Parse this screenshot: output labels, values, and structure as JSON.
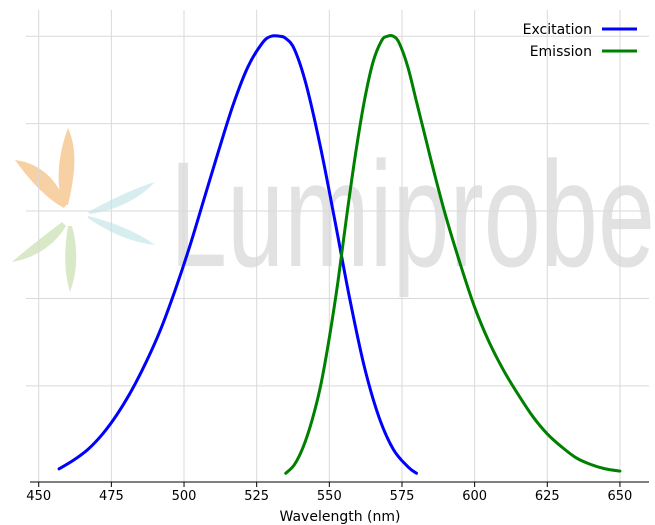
{
  "watermark": {
    "text": "Lumiprobe",
    "logo_petal_colors": [
      "#f7d1a3",
      "#d7eef0",
      "#d9e9c7"
    ]
  },
  "chart_data": {
    "type": "line",
    "title": "",
    "xlabel": "Wavelength (nm)",
    "ylabel": "",
    "xlim": [
      447,
      660
    ],
    "ylim": [
      -0.02,
      1.06
    ],
    "xticks": [
      450,
      475,
      500,
      525,
      550,
      575,
      600,
      625,
      650
    ],
    "yticks": [
      0.2,
      0.4,
      0.6,
      0.8,
      1.0
    ],
    "grid": true,
    "legend_position": "top-right",
    "series": [
      {
        "name": "Excitation",
        "color": "#0000ff",
        "x": [
          457,
          462,
          467,
          472,
          477,
          482,
          487,
          492,
          497,
          502,
          507,
          512,
          517,
          522,
          527,
          530,
          533,
          535,
          538,
          542,
          547,
          552,
          557,
          562,
          567,
          572,
          577,
          580
        ],
        "y": [
          0.01,
          0.03,
          0.055,
          0.09,
          0.135,
          0.19,
          0.255,
          0.33,
          0.42,
          0.52,
          0.63,
          0.74,
          0.845,
          0.93,
          0.985,
          1.0,
          1.0,
          0.995,
          0.97,
          0.89,
          0.745,
          0.575,
          0.4,
          0.245,
          0.13,
          0.055,
          0.015,
          0.0
        ]
      },
      {
        "name": "Emission",
        "color": "#008000",
        "x": [
          535,
          538,
          541,
          544,
          547,
          550,
          553,
          556,
          559,
          562,
          565,
          568,
          570,
          572,
          574,
          577,
          580,
          583,
          586,
          590,
          595,
          600,
          605,
          610,
          615,
          620,
          625,
          630,
          635,
          640,
          645,
          650
        ],
        "y": [
          0.0,
          0.02,
          0.06,
          0.12,
          0.2,
          0.31,
          0.44,
          0.59,
          0.73,
          0.85,
          0.94,
          0.99,
          1.0,
          1.0,
          0.985,
          0.93,
          0.85,
          0.77,
          0.69,
          0.59,
          0.48,
          0.38,
          0.3,
          0.235,
          0.18,
          0.13,
          0.09,
          0.06,
          0.035,
          0.02,
          0.01,
          0.005
        ]
      }
    ]
  }
}
